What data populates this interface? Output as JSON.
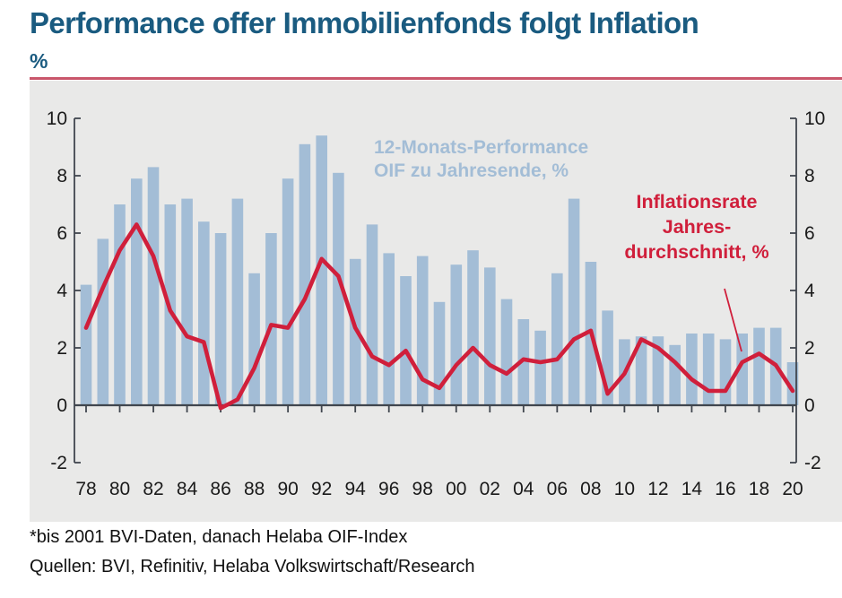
{
  "header": {
    "title": "Performance offer Immobilienfonds folgt Inflation",
    "unit_label": "%"
  },
  "chart_data": {
    "type": "bar",
    "x": [
      1978,
      1979,
      1980,
      1981,
      1982,
      1983,
      1984,
      1985,
      1986,
      1987,
      1988,
      1989,
      1990,
      1991,
      1992,
      1993,
      1994,
      1995,
      1996,
      1997,
      1998,
      1999,
      2000,
      2001,
      2002,
      2003,
      2004,
      2005,
      2006,
      2007,
      2008,
      2009,
      2010,
      2011,
      2012,
      2013,
      2014,
      2015,
      2016,
      2017,
      2018,
      2019,
      2020
    ],
    "x_tick_labels": [
      "78",
      "80",
      "82",
      "84",
      "86",
      "88",
      "90",
      "92",
      "94",
      "96",
      "98",
      "00",
      "02",
      "04",
      "06",
      "08",
      "10",
      "12",
      "14",
      "16",
      "18",
      "20"
    ],
    "series": [
      {
        "name": "12-Monats-Performance OIF zu Jahresende, %",
        "type": "bar",
        "color": "#A3BDD6",
        "values": [
          4.2,
          5.8,
          7.0,
          7.9,
          8.3,
          7.0,
          7.2,
          6.4,
          6.0,
          7.2,
          4.6,
          6.0,
          7.9,
          9.1,
          9.4,
          8.1,
          5.1,
          6.3,
          5.3,
          4.5,
          5.2,
          3.6,
          4.9,
          5.4,
          4.8,
          3.7,
          3.0,
          2.6,
          4.6,
          7.2,
          5.0,
          3.3,
          2.3,
          2.4,
          2.4,
          2.1,
          2.5,
          2.5,
          2.3,
          2.5,
          2.7,
          2.7,
          1.5
        ]
      },
      {
        "name": "Inflationsrate Jahresdurchschnitt, %",
        "type": "line",
        "color": "#D01F3B",
        "values": [
          2.7,
          4.1,
          5.4,
          6.3,
          5.2,
          3.3,
          2.4,
          2.2,
          -0.1,
          0.2,
          1.3,
          2.8,
          2.7,
          3.7,
          5.1,
          4.5,
          2.7,
          1.7,
          1.4,
          1.9,
          0.9,
          0.6,
          1.4,
          2.0,
          1.4,
          1.1,
          1.6,
          1.5,
          1.6,
          2.3,
          2.6,
          0.4,
          1.1,
          2.3,
          2.0,
          1.5,
          0.9,
          0.5,
          0.5,
          1.5,
          1.8,
          1.4,
          0.5
        ]
      }
    ],
    "ylim": [
      -2,
      10
    ],
    "yticks": [
      "10",
      "8",
      "6",
      "4",
      "2",
      "0",
      "-2"
    ],
    "grid": "off",
    "legend": {
      "position": "inside-plot",
      "bar_label_lines": [
        "12-Monats-Performance",
        "OIF zu Jahresende, %"
      ],
      "line_label_lines": [
        "Inflationsrate",
        "Jahres-",
        "durchschnitt, %"
      ]
    }
  },
  "footnotes": [
    "*bis 2001 BVI-Daten, danach Helaba OIF-Index",
    "Quellen: BVI, Refinitiv, Helaba Volkswirtschaft/Research"
  ],
  "colors": {
    "title": "#1A5B80",
    "rule": "#C9566B",
    "panel_bg": "#E9E9E8",
    "bar": "#A3BDD6",
    "line": "#D01F3B",
    "axis": "#40464E",
    "tick_text": "#1A1A1A"
  }
}
